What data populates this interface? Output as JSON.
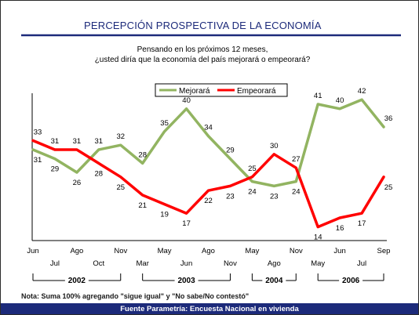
{
  "chart_data": {
    "type": "line",
    "title": "PERCEPCIÓN PROSPECTIVA DE LA ECONOMÍA",
    "subtitle_lines": [
      "Pensando en los próximos 12 meses,",
      "¿usted diría que la economía del país mejorará o empeorará?"
    ],
    "x": [
      "Jun",
      "Jul",
      "Ago",
      "Oct",
      "Nov",
      "Mar",
      "May",
      "Jun",
      "Ago",
      "Nov",
      "May",
      "Ago",
      "Nov",
      "May",
      "Jun",
      "Jul",
      "Sep"
    ],
    "years": [
      {
        "label": "2002",
        "start": 0,
        "end": 4
      },
      {
        "label": "2003",
        "start": 5,
        "end": 9
      },
      {
        "label": "2004",
        "start": 10,
        "end": 12
      },
      {
        "label": "2006",
        "start": 13,
        "end": 16
      }
    ],
    "series": [
      {
        "name": "Mejorará",
        "color": "#92b461",
        "values": [
          31,
          29,
          26,
          31,
          32,
          28,
          35,
          40,
          34,
          29,
          24,
          23,
          24,
          41,
          40,
          42,
          36
        ]
      },
      {
        "name": "Empeorará",
        "color": "#ff0000",
        "values": [
          33,
          31,
          31,
          28,
          25,
          21,
          19,
          17,
          22,
          23,
          25,
          30,
          27,
          14,
          16,
          17,
          25
        ]
      }
    ],
    "ylim": [
      11,
      46
    ],
    "grid": false,
    "legend_position": "top"
  },
  "note": "Nota: Suma 100% agregando \"sigue igual\" y \"No sabe/No contestó\"",
  "source": "Fuente Parametría: Encuesta Nacional en vivienda",
  "colors": {
    "title": "#1c2a7a",
    "rule": "#1c2a7a",
    "source_bar": "#1c2a7a"
  }
}
